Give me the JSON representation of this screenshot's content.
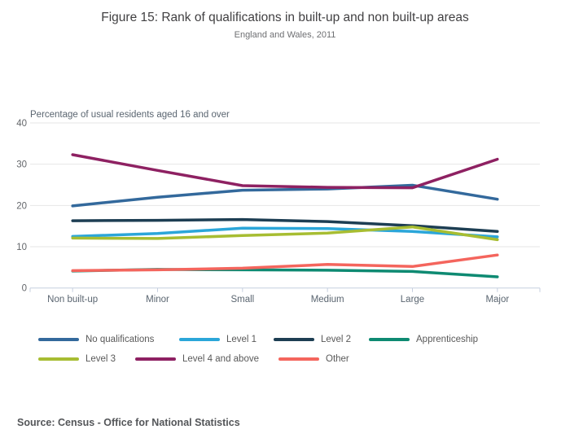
{
  "title": "Figure 15: Rank of qualifications in built-up and non built-up areas",
  "subtitle": "England and Wales, 2011",
  "source": "Source: Census - Office for National Statistics",
  "chart_data": {
    "type": "line",
    "title": "Figure 15: Rank of qualifications in built-up and non built-up areas",
    "subtitle": "England and Wales, 2011",
    "xlabel": "",
    "ylabel": "Percentage of usual residents aged 16 and over",
    "categories": [
      "Non built-up",
      "Minor",
      "Small",
      "Medium",
      "Large",
      "Major"
    ],
    "series": [
      {
        "name": "No qualifications",
        "color": "#33699c",
        "values": [
          19.9,
          22.0,
          23.7,
          24.0,
          24.9,
          21.5
        ]
      },
      {
        "name": "Level 1",
        "color": "#2ba6d9",
        "values": [
          12.5,
          13.2,
          14.5,
          14.4,
          13.7,
          12.4
        ]
      },
      {
        "name": "Level 2",
        "color": "#1d3e53",
        "values": [
          16.3,
          16.4,
          16.6,
          16.1,
          15.1,
          13.7
        ]
      },
      {
        "name": "Apprenticeship",
        "color": "#0e8a72",
        "values": [
          4.1,
          4.5,
          4.4,
          4.3,
          4.0,
          2.7
        ]
      },
      {
        "name": "Level 3",
        "color": "#a7bd32",
        "values": [
          12.1,
          12.0,
          12.7,
          13.3,
          14.8,
          11.7
        ]
      },
      {
        "name": "Level 4 and above",
        "color": "#8e2162",
        "values": [
          32.3,
          28.5,
          24.8,
          24.4,
          24.3,
          31.2
        ]
      },
      {
        "name": "Other",
        "color": "#f4655d",
        "values": [
          4.2,
          4.4,
          4.8,
          5.7,
          5.2,
          8.0
        ]
      }
    ],
    "ylim": [
      0,
      40
    ],
    "yticks": [
      0,
      10,
      20,
      30,
      40
    ],
    "grid": true,
    "legend_position": "bottom",
    "grid_color": "#e6e6e6",
    "axis_line_color": "#c6cfdf",
    "tick_label_color": "#63666a",
    "category_label_color": "#5a6570"
  }
}
